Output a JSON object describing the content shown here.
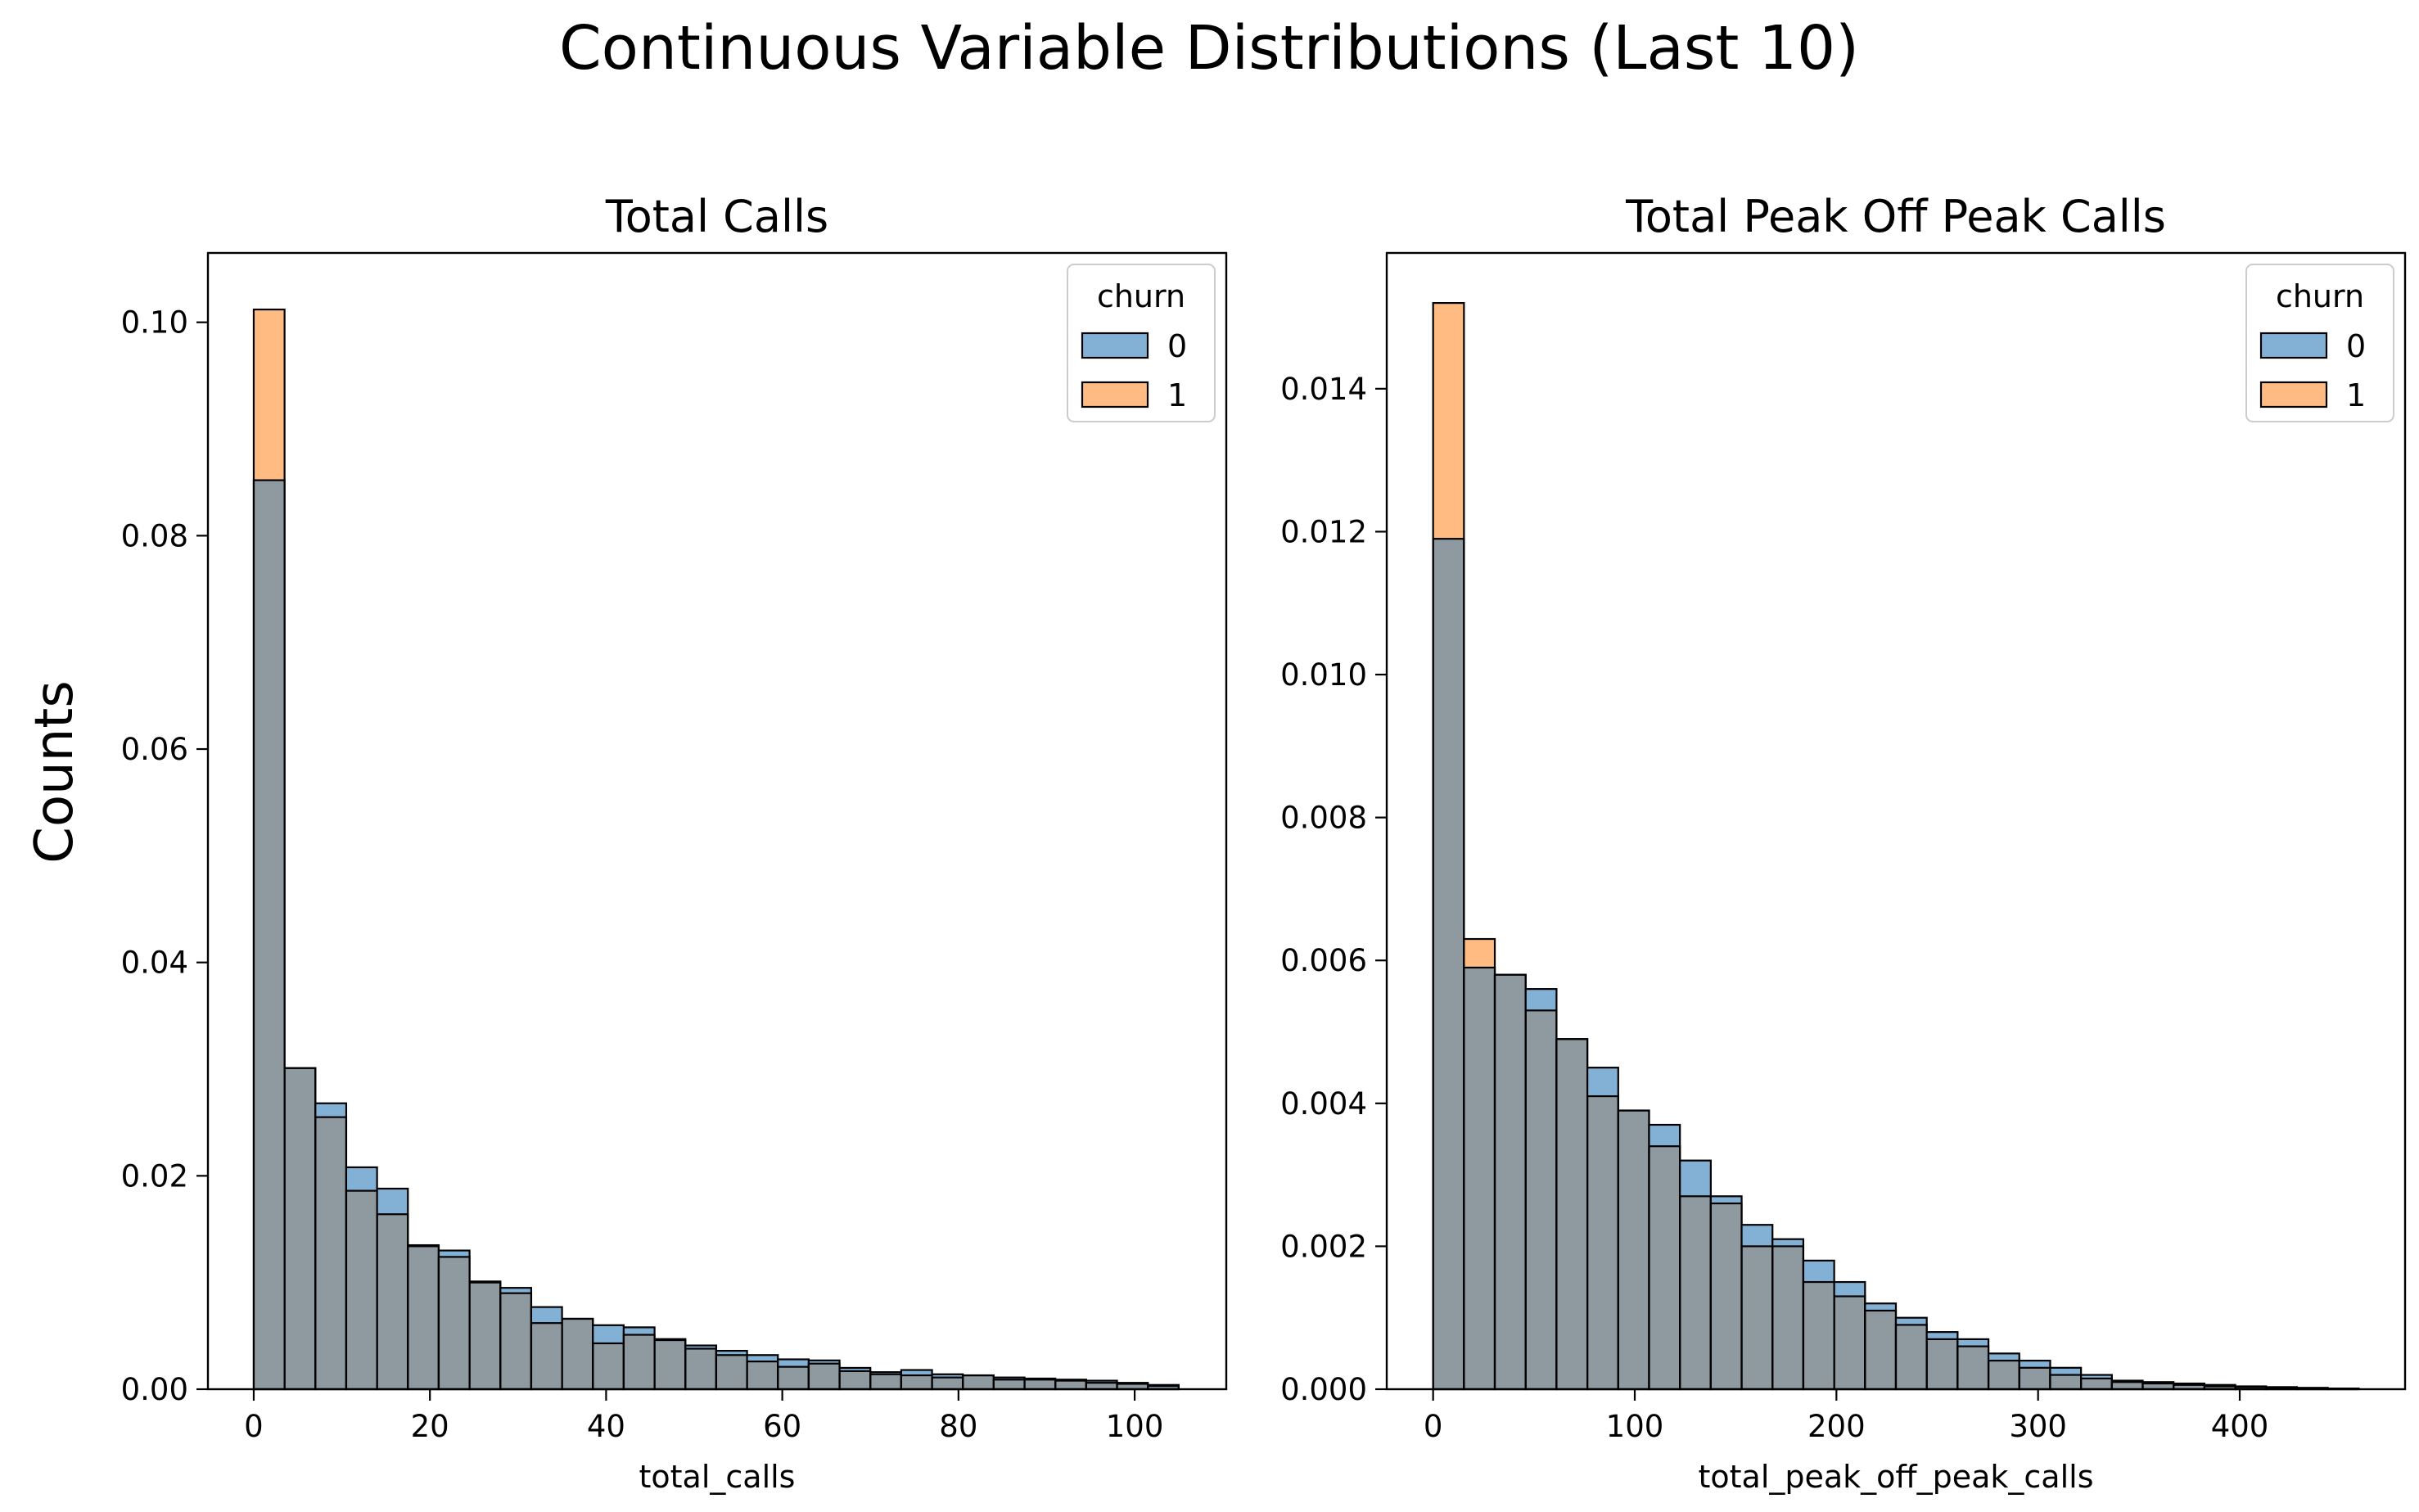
{
  "figure": {
    "suptitle": "Continuous Variable Distributions (Last 10)",
    "ylabel": "Counts"
  },
  "colors": {
    "churn_0": "#1f77b4",
    "churn_1": "#ff7f0e",
    "overlap": "#8e9aa0",
    "edge": "#000000"
  },
  "chart_data": [
    {
      "type": "bar",
      "title": "Total Calls",
      "xlabel": "total_calls",
      "ylabel": "Counts",
      "xlim": [
        -5.2,
        110.4
      ],
      "ylim": [
        0,
        0.1065
      ],
      "xticks": [
        0,
        20,
        40,
        60,
        80,
        100
      ],
      "yticks": [
        0.0,
        0.02,
        0.04,
        0.06,
        0.08,
        0.1
      ],
      "ytick_labels": [
        "0.00",
        "0.02",
        "0.04",
        "0.06",
        "0.08",
        "0.10"
      ],
      "grid": false,
      "legend": {
        "title": "churn",
        "position": "top-right",
        "entries": [
          "0",
          "1"
        ]
      },
      "bin_start": 0,
      "bin_width": 3.5,
      "series": [
        {
          "name": "0",
          "values": [
            0.0852,
            0.0301,
            0.0268,
            0.0208,
            0.0188,
            0.0135,
            0.013,
            0.0101,
            0.0095,
            0.0077,
            0.0066,
            0.006,
            0.0058,
            0.0047,
            0.0041,
            0.0036,
            0.0032,
            0.0028,
            0.0027,
            0.002,
            0.0016,
            0.0018,
            0.0014,
            0.0013,
            0.0011,
            0.001,
            0.0009,
            0.0008,
            0.0006,
            0.0004
          ]
        },
        {
          "name": "1",
          "values": [
            0.1012,
            0.0301,
            0.0255,
            0.0186,
            0.0164,
            0.0134,
            0.0124,
            0.01,
            0.009,
            0.0062,
            0.0066,
            0.0043,
            0.0051,
            0.0046,
            0.0038,
            0.0032,
            0.0026,
            0.0021,
            0.0024,
            0.0017,
            0.0014,
            0.0013,
            0.0011,
            0.0013,
            0.0009,
            0.0009,
            0.0008,
            0.0006,
            0.0005,
            0.0003
          ]
        }
      ]
    },
    {
      "type": "bar",
      "title": "Total Peak Off Peak Calls",
      "xlabel": "total_peak_off_peak_calls",
      "ylabel": "",
      "xlim": [
        -23,
        482
      ],
      "ylim": [
        0,
        0.0159
      ],
      "xticks": [
        0,
        100,
        200,
        300,
        400
      ],
      "yticks": [
        0.0,
        0.002,
        0.004,
        0.006,
        0.008,
        0.01,
        0.012,
        0.014
      ],
      "ytick_labels": [
        "0.000",
        "0.002",
        "0.004",
        "0.006",
        "0.008",
        "0.010",
        "0.012",
        "0.014"
      ],
      "grid": false,
      "legend": {
        "title": "churn",
        "position": "top-right",
        "entries": [
          "0",
          "1"
        ]
      },
      "bin_start": 0,
      "bin_width": 15.3,
      "series": [
        {
          "name": "0",
          "values": [
            0.0119,
            0.0059,
            0.0058,
            0.0056,
            0.0049,
            0.0045,
            0.0039,
            0.0037,
            0.0032,
            0.0027,
            0.0023,
            0.0021,
            0.0018,
            0.0015,
            0.0012,
            0.001,
            0.0008,
            0.0007,
            0.0005,
            0.0004,
            0.0003,
            0.0002,
            0.00012,
            0.0001,
            8e-05,
            6e-05,
            4e-05,
            3e-05,
            2e-05,
            1e-05
          ]
        },
        {
          "name": "1",
          "values": [
            0.0152,
            0.0063,
            0.0058,
            0.0053,
            0.0049,
            0.0041,
            0.0039,
            0.0034,
            0.0027,
            0.0026,
            0.002,
            0.002,
            0.0015,
            0.0013,
            0.0011,
            0.0009,
            0.0007,
            0.0006,
            0.0004,
            0.0003,
            0.0002,
            0.00015,
            0.0001,
            8e-05,
            6e-05,
            4e-05,
            3e-05,
            2e-05,
            1e-05,
            1e-05
          ]
        }
      ]
    }
  ]
}
